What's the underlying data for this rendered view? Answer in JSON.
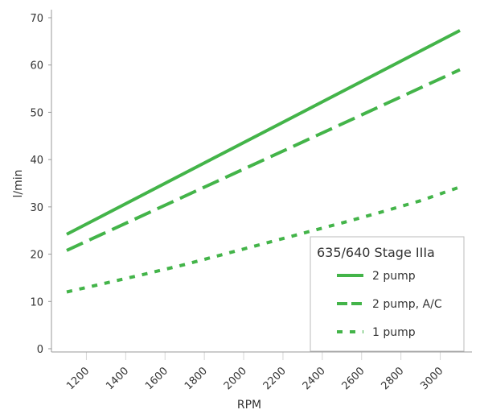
{
  "chart_data": {
    "type": "line",
    "title": "",
    "xlabel": "RPM",
    "ylabel": "l/min",
    "xlim": [
      1100,
      3100
    ],
    "ylim": [
      0,
      70
    ],
    "xticks": [
      1200,
      1400,
      1600,
      1800,
      2000,
      2200,
      2400,
      2600,
      2800,
      3000
    ],
    "yticks": [
      0,
      10,
      20,
      30,
      40,
      50,
      60,
      70
    ],
    "grid": "vertical",
    "legend": {
      "title": "635/640 Stage IIIa",
      "position": "lower-right"
    },
    "series": [
      {
        "name": "2 pump",
        "style": "solid",
        "color": "#43b449",
        "x": [
          1100,
          3100
        ],
        "y": [
          24.2,
          67.3
        ]
      },
      {
        "name": "2 pump, A/C",
        "style": "long-dash",
        "color": "#43b449",
        "x": [
          1100,
          3100
        ],
        "y": [
          20.8,
          59.0
        ]
      },
      {
        "name": "1 pump",
        "style": "short-dash",
        "color": "#43b449",
        "x": [
          1100,
          1300,
          1500,
          1700,
          1900,
          2100,
          2300,
          2500,
          2700,
          2900,
          3100
        ],
        "y": [
          12.0,
          13.9,
          15.8,
          17.8,
          20.0,
          22.2,
          24.4,
          26.6,
          28.9,
          31.3,
          34.2
        ]
      }
    ]
  }
}
